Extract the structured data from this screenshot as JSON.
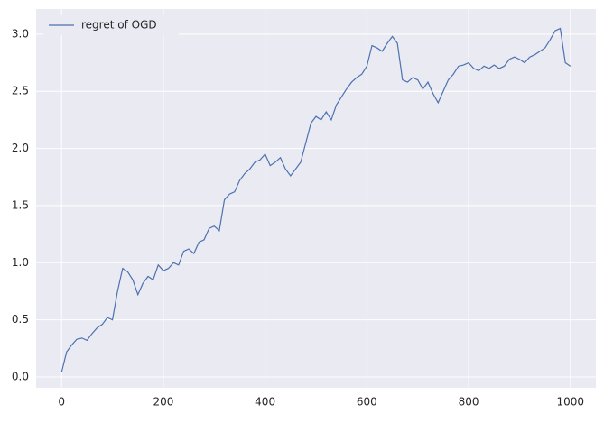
{
  "chart_data": {
    "type": "line",
    "x": [
      0,
      10,
      20,
      30,
      40,
      50,
      60,
      70,
      80,
      90,
      100,
      110,
      120,
      130,
      140,
      150,
      160,
      170,
      180,
      190,
      200,
      210,
      220,
      230,
      240,
      250,
      260,
      270,
      280,
      290,
      300,
      310,
      320,
      330,
      340,
      350,
      360,
      370,
      380,
      390,
      400,
      410,
      420,
      430,
      440,
      450,
      460,
      470,
      480,
      490,
      500,
      510,
      520,
      530,
      540,
      550,
      560,
      570,
      580,
      590,
      600,
      610,
      620,
      630,
      640,
      650,
      660,
      670,
      680,
      690,
      700,
      710,
      720,
      730,
      740,
      750,
      760,
      770,
      780,
      790,
      800,
      810,
      820,
      830,
      840,
      850,
      860,
      870,
      880,
      890,
      900,
      910,
      920,
      930,
      940,
      950,
      960,
      970,
      980,
      990,
      1000
    ],
    "series": [
      {
        "name": "regret of OGD",
        "color": "#4c72b0",
        "values": [
          0.04,
          0.22,
          0.28,
          0.33,
          0.34,
          0.32,
          0.38,
          0.43,
          0.46,
          0.52,
          0.5,
          0.75,
          0.95,
          0.92,
          0.85,
          0.72,
          0.82,
          0.88,
          0.85,
          0.98,
          0.93,
          0.95,
          1.0,
          0.98,
          1.1,
          1.12,
          1.08,
          1.18,
          1.2,
          1.3,
          1.32,
          1.28,
          1.55,
          1.6,
          1.62,
          1.72,
          1.78,
          1.82,
          1.88,
          1.9,
          1.95,
          1.85,
          1.88,
          1.92,
          1.82,
          1.76,
          1.82,
          1.88,
          2.05,
          2.22,
          2.28,
          2.25,
          2.32,
          2.25,
          2.38,
          2.45,
          2.52,
          2.58,
          2.62,
          2.65,
          2.72,
          2.9,
          2.88,
          2.85,
          2.92,
          2.98,
          2.92,
          2.6,
          2.58,
          2.62,
          2.6,
          2.52,
          2.58,
          2.48,
          2.4,
          2.5,
          2.6,
          2.65,
          2.72,
          2.73,
          2.75,
          2.7,
          2.68,
          2.72,
          2.7,
          2.73,
          2.7,
          2.72,
          2.78,
          2.8,
          2.78,
          2.75,
          2.8,
          2.82,
          2.85,
          2.88,
          2.95,
          3.03,
          3.05,
          2.75,
          2.72
        ]
      }
    ],
    "xlim": [
      -50,
      1050
    ],
    "ylim": [
      -0.095,
      3.22
    ],
    "xticks": [
      0,
      200,
      400,
      600,
      800,
      1000
    ],
    "yticks": [
      {
        "value": 0,
        "label": "0.0"
      },
      0.5,
      {
        "value": 1,
        "label": "1.0"
      },
      1.5,
      {
        "value": 2,
        "label": "2.0"
      },
      2.5,
      {
        "value": 3,
        "label": "3.0"
      }
    ],
    "grid": true,
    "legend": "upper left"
  }
}
